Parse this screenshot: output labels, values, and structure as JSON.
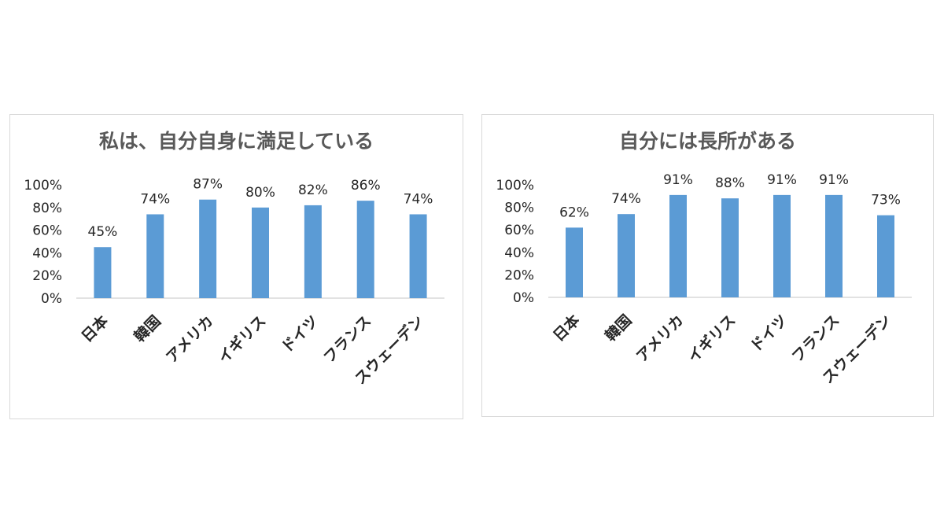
{
  "chart_data": [
    {
      "type": "bar",
      "title": "私は、自分自身に満足している",
      "categories": [
        "日本",
        "韓国",
        "アメリカ",
        "イギリス",
        "ドイツ",
        "フランス",
        "スウェーデン"
      ],
      "values": [
        45,
        74,
        87,
        80,
        82,
        86,
        74
      ],
      "data_labels": [
        "45%",
        "74%",
        "87%",
        "80%",
        "82%",
        "86%",
        "74%"
      ],
      "y_ticks": [
        "0%",
        "20%",
        "40%",
        "60%",
        "80%",
        "100%"
      ],
      "ylim": [
        0,
        100
      ],
      "grid": false,
      "legend": "none",
      "bar_color": "#5b9bd5"
    },
    {
      "type": "bar",
      "title": "自分には長所がある",
      "categories": [
        "日本",
        "韓国",
        "アメリカ",
        "イギリス",
        "ドイツ",
        "フランス",
        "スウェーデン"
      ],
      "values": [
        62,
        74,
        91,
        88,
        91,
        91,
        73
      ],
      "data_labels": [
        "62%",
        "74%",
        "91%",
        "88%",
        "91%",
        "91%",
        "73%"
      ],
      "y_ticks": [
        "0%",
        "20%",
        "40%",
        "60%",
        "80%",
        "100%"
      ],
      "ylim": [
        0,
        100
      ],
      "grid": false,
      "legend": "none",
      "bar_color": "#5b9bd5"
    }
  ]
}
